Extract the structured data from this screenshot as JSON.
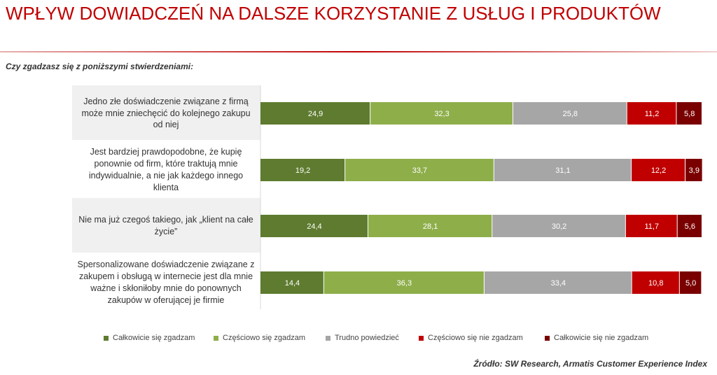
{
  "chart_data": {
    "type": "stacked-barh",
    "title": "WPŁYW DOWIADCZEŃ NA DALSZE KORZYSTANIE Z USŁUG I PRODUKTÓW",
    "subtitle": "Czy zgadzasz się z poniższymi stwierdzeniami:",
    "source": "Źródło: SW Research, Armatis Customer Experience Index",
    "categories": [
      "Jedno złe doświadczenie związane z firmą może mnie zniechęcić do kolejnego zakupu od niej",
      "Jest bardziej prawdopodobne, że kupię ponownie od firm, które traktują mnie indywidualnie, a nie jak każdego innego klienta",
      "Nie ma już czegoś takiego, jak „klient na całe życie”",
      "Spersonalizowane doświadczenie związane z zakupem i obsługą w internecie jest dla mnie ważne i skłoniłoby mnie do ponownych zakupów w oferującej je firmie"
    ],
    "xlim": [
      0,
      100
    ],
    "series": [
      {
        "name": "Całkowicie się zgadzam",
        "color": "#5e7b2f",
        "values": [
          24.9,
          19.2,
          24.4,
          14.4
        ],
        "value_labels": [
          "24,9",
          "19,2",
          "24,4",
          "14,4"
        ]
      },
      {
        "name": "Częściowo się zgadzam",
        "color": "#8eae4a",
        "values": [
          32.3,
          33.7,
          28.1,
          36.3
        ],
        "value_labels": [
          "32,3",
          "33,7",
          "28,1",
          "36,3"
        ]
      },
      {
        "name": "Trudno powiedzieć",
        "color": "#a6a6a6",
        "values": [
          25.8,
          31.1,
          30.2,
          33.4
        ],
        "value_labels": [
          "25,8",
          "31,1",
          "30,2",
          "33,4"
        ]
      },
      {
        "name": "Częściowo się nie zgadzam",
        "color": "#c00000",
        "values": [
          11.2,
          12.2,
          11.7,
          10.8
        ],
        "value_labels": [
          "11,2",
          "12,2",
          "11,7",
          "10,8"
        ]
      },
      {
        "name": "Całkowicie się nie zgadzam",
        "color": "#7a0000",
        "values": [
          5.8,
          3.9,
          5.6,
          5.0
        ],
        "value_labels": [
          "5,8",
          "3,9",
          "5,6",
          "5,0"
        ]
      }
    ]
  }
}
